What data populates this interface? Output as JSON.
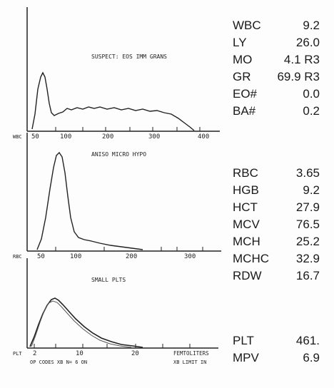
{
  "wbc_panel": {
    "flag": "SUSPECT: EOS IMM GRANS",
    "axis_name": "WBC",
    "ticks": [
      "50",
      "100",
      "200",
      "300",
      "400"
    ]
  },
  "rbc_panel": {
    "flag": "ANISO MICRO HYPO",
    "axis_name": "RBC",
    "ticks": [
      "50",
      "100",
      "200",
      "300"
    ]
  },
  "plt_panel": {
    "flag": "SMALL PLTS",
    "axis_name": "PLT",
    "ticks": [
      "2",
      "10",
      "20"
    ],
    "unit_label": "FEMTOLITERS",
    "footer_left": "OP CODES XB N= 6  ON",
    "footer_right": "XB LIMIT IN"
  },
  "wbc_values": [
    {
      "label": "WBC",
      "value": "9.2"
    },
    {
      "label": "LY",
      "value": "26.0"
    },
    {
      "label": "MO",
      "value": "4.1 R3"
    },
    {
      "label": "GR",
      "value": "69.9 R3"
    },
    {
      "label": "EO#",
      "value": "0.0"
    },
    {
      "label": "BA#",
      "value": "0.2"
    }
  ],
  "rbc_values": [
    {
      "label": "RBC",
      "value": "3.65"
    },
    {
      "label": "HGB",
      "value": "9.2"
    },
    {
      "label": "HCT",
      "value": "27.9"
    },
    {
      "label": "MCV",
      "value": "76.5"
    },
    {
      "label": "MCH",
      "value": "25.2"
    },
    {
      "label": "MCHC",
      "value": "32.9"
    },
    {
      "label": "RDW",
      "value": "16.7"
    }
  ],
  "plt_values": [
    {
      "label": "PLT",
      "value": "461."
    },
    {
      "label": "MPV",
      "value": "6.9"
    }
  ]
}
